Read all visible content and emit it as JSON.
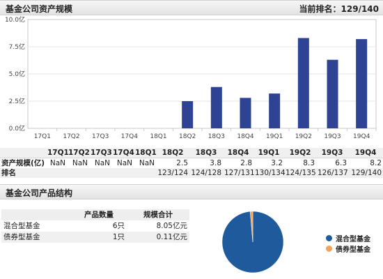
{
  "header": {
    "title": "基金公司资产规模",
    "rank_summary": "当前排名：129/140"
  },
  "chart_data": [
    {
      "type": "bar",
      "categories": [
        "17Q1",
        "17Q2",
        "17Q3",
        "17Q4",
        "18Q1",
        "18Q2",
        "18Q3",
        "18Q4",
        "19Q1",
        "19Q2",
        "19Q3",
        "19Q4"
      ],
      "values": [
        null,
        null,
        null,
        null,
        null,
        2.5,
        3.8,
        2.8,
        3.2,
        8.3,
        6.3,
        8.2
      ],
      "yticks": [
        "0.0亿",
        "2.5亿",
        "5.0亿",
        "7.5亿",
        "10.0亿"
      ],
      "ylim": [
        0,
        10
      ],
      "color": "#2e4393",
      "grid": true
    },
    {
      "type": "pie",
      "labels": [
        "混合型基金",
        "债券型基金"
      ],
      "values": [
        8.05,
        0.11
      ],
      "colors": [
        "#1e5a9c",
        "#f0a35a"
      ],
      "legend": "right"
    }
  ],
  "asset_table": {
    "columns": [
      "17Q1",
      "17Q2",
      "17Q3",
      "17Q4",
      "18Q1",
      "18Q2",
      "18Q3",
      "18Q4",
      "19Q1",
      "19Q2",
      "19Q3",
      "19Q4"
    ],
    "rows": [
      {
        "label": "资产规模(亿)",
        "cells": [
          "NaN",
          "NaN",
          "NaN",
          "NaN",
          "NaN",
          "2.5",
          "3.8",
          "2.8",
          "3.2",
          "8.3",
          "6.3",
          "8.2"
        ]
      },
      {
        "label": "排名",
        "cells": [
          "",
          "",
          "",
          "",
          "",
          "123/124",
          "124/128",
          "127/131",
          "130/134",
          "124/135",
          "126/137",
          "129/140"
        ]
      }
    ]
  },
  "structure": {
    "title": "基金公司产品结构",
    "headers": [
      "",
      "产品数量",
      "规模合计"
    ],
    "rows": [
      {
        "name": "混合型基金",
        "count": "6只",
        "scale": "8.05亿元"
      },
      {
        "name": "债券型基金",
        "count": "1只",
        "scale": "0.11亿元"
      }
    ]
  }
}
